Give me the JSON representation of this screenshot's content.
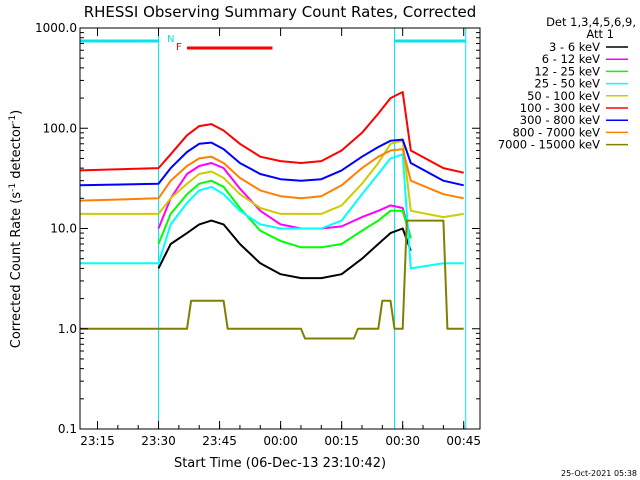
{
  "chart_data": {
    "type": "line",
    "title": "RHESSI Observing Summary Count Rates, Corrected",
    "xlabel": "Start Time (06-Dec-13 23:10:42)",
    "ylabel": "Corrected Count Rate (s",
    "ylabel_sup": "-1",
    "ylabel_tail": " detector",
    "ylabel_tail_sup": "-1",
    "ylabel_close": ")",
    "y_scale": "log",
    "ylim": [
      0.1,
      1000
    ],
    "xlim": [
      "23:10:42",
      "00:49:00"
    ],
    "x_ticks": [
      {
        "t": "23:15",
        "label": "23:15"
      },
      {
        "t": "23:30",
        "label": "23:30"
      },
      {
        "t": "23:45",
        "label": "23:45"
      },
      {
        "t": "00:00",
        "label": "00:00"
      },
      {
        "t": "00:15",
        "label": "00:15"
      },
      {
        "t": "00:30",
        "label": "00:30"
      },
      {
        "t": "00:45",
        "label": "00:45"
      }
    ],
    "y_ticks": [
      {
        "v": 0.1,
        "label": "0.1"
      },
      {
        "v": 1,
        "label": "1.0"
      },
      {
        "v": 10,
        "label": "10.0"
      },
      {
        "v": 100,
        "label": "100.0"
      },
      {
        "v": 1000,
        "label": "1000.0"
      }
    ],
    "legend_header": [
      "Det 1,3,4,5,6,9,",
      "Att 1"
    ],
    "legend_position": "right",
    "grid": false,
    "night_intervals": [
      [
        "23:10:42",
        "23:30:00"
      ],
      [
        "00:28:00",
        "00:45:30"
      ]
    ],
    "flare_interval": [
      "23:37:00",
      "23:58:00"
    ],
    "markers": [
      {
        "label": "N",
        "t": "23:33",
        "color": "#00e5ee"
      },
      {
        "label": "F",
        "t": "23:35",
        "color": "#ff0000"
      }
    ],
    "series": [
      {
        "name": "3 - 6 keV",
        "color": "#000000",
        "x": [
          "23:30",
          "23:33",
          "23:37",
          "23:40",
          "23:43",
          "23:46",
          "23:50",
          "23:55",
          "00:00",
          "00:05",
          "00:10",
          "00:15",
          "00:20",
          "00:24",
          "00:27",
          "00:30",
          "00:32"
        ],
        "values": [
          4,
          7,
          9,
          11,
          12,
          11,
          7,
          4.5,
          3.5,
          3.2,
          3.2,
          3.5,
          5,
          7,
          9,
          10,
          6
        ]
      },
      {
        "name": "6 - 12 keV",
        "color": "#ff00ff",
        "x": [
          "23:30",
          "23:33",
          "23:37",
          "23:40",
          "23:43",
          "23:46",
          "23:50",
          "23:55",
          "00:00",
          "00:05",
          "00:10",
          "00:15",
          "00:20",
          "00:24",
          "00:27",
          "00:30",
          "00:32"
        ],
        "values": [
          10,
          20,
          35,
          42,
          45,
          40,
          25,
          15,
          11,
          10,
          10,
          10.5,
          13,
          15,
          17,
          16,
          8
        ]
      },
      {
        "name": "12 - 25 keV",
        "color": "#00ff00",
        "x": [
          "23:30",
          "23:33",
          "23:37",
          "23:40",
          "23:43",
          "23:46",
          "23:50",
          "23:55",
          "00:00",
          "00:05",
          "00:10",
          "00:15",
          "00:20",
          "00:24",
          "00:27",
          "00:30",
          "00:32"
        ],
        "values": [
          7,
          14,
          22,
          28,
          30,
          26,
          16,
          9.5,
          7.5,
          6.5,
          6.5,
          7,
          9.5,
          12,
          15,
          15,
          8
        ]
      },
      {
        "name": "25 - 50 keV",
        "color": "#00ffff",
        "x": [
          "23:10:42",
          "23:30",
          "23:33",
          "23:37",
          "23:40",
          "23:43",
          "23:46",
          "23:50",
          "23:55",
          "00:00",
          "00:05",
          "00:10",
          "00:15",
          "00:20",
          "00:24",
          "00:27",
          "00:30",
          "00:32",
          "00:40",
          "00:45"
        ],
        "values": [
          4.5,
          4.5,
          11,
          18,
          24,
          26,
          22,
          15,
          11,
          10,
          10,
          10,
          12,
          22,
          35,
          50,
          55,
          4,
          4.5,
          4.5
        ]
      },
      {
        "name": "50 - 100 keV",
        "color": "#cccc00",
        "x": [
          "23:10:42",
          "23:30",
          "23:33",
          "23:37",
          "23:40",
          "23:43",
          "23:46",
          "23:50",
          "23:55",
          "00:00",
          "00:05",
          "00:10",
          "00:15",
          "00:20",
          "00:24",
          "00:27",
          "00:30",
          "00:32",
          "00:40",
          "00:45"
        ],
        "values": [
          14,
          14,
          20,
          28,
          35,
          37,
          32,
          22,
          16,
          14,
          14,
          14,
          17,
          28,
          45,
          70,
          75,
          15,
          13,
          14
        ]
      },
      {
        "name": "100 - 300 keV",
        "color": "#ff0000",
        "x": [
          "23:10:42",
          "23:30",
          "23:33",
          "23:37",
          "23:40",
          "23:43",
          "23:46",
          "23:50",
          "23:55",
          "00:00",
          "00:05",
          "00:10",
          "00:15",
          "00:20",
          "00:24",
          "00:27",
          "00:30",
          "00:32",
          "00:40",
          "00:45"
        ],
        "values": [
          38,
          40,
          55,
          85,
          105,
          110,
          95,
          70,
          52,
          47,
          45,
          47,
          60,
          90,
          140,
          200,
          230,
          60,
          40,
          36
        ]
      },
      {
        "name": "300 - 800 keV",
        "color": "#0000ff",
        "x": [
          "23:10:42",
          "23:30",
          "23:33",
          "23:37",
          "23:40",
          "23:43",
          "23:46",
          "23:50",
          "23:55",
          "00:00",
          "00:05",
          "00:10",
          "00:15",
          "00:20",
          "00:24",
          "00:27",
          "00:30",
          "00:32",
          "00:40",
          "00:45"
        ],
        "values": [
          27,
          28,
          40,
          58,
          70,
          72,
          62,
          45,
          35,
          31,
          30,
          31,
          38,
          52,
          65,
          75,
          77,
          45,
          30,
          27
        ]
      },
      {
        "name": "800 - 7000 keV",
        "color": "#ff8000",
        "x": [
          "23:10:42",
          "23:30",
          "23:33",
          "23:37",
          "23:40",
          "23:43",
          "23:46",
          "23:50",
          "23:55",
          "00:00",
          "00:05",
          "00:10",
          "00:15",
          "00:20",
          "00:24",
          "00:27",
          "00:30",
          "00:32",
          "00:40",
          "00:45"
        ],
        "values": [
          19,
          20,
          30,
          42,
          50,
          52,
          45,
          32,
          24,
          21,
          20,
          21,
          27,
          40,
          52,
          60,
          62,
          30,
          22,
          20
        ]
      },
      {
        "name": "7000 - 15000 keV",
        "color": "#808000",
        "x": [
          "23:10:42",
          "23:30",
          "23:31",
          "23:37",
          "23:38",
          "23:46",
          "23:47",
          "00:05",
          "00:06",
          "00:18",
          "00:19",
          "00:24",
          "00:25",
          "00:27",
          "00:28",
          "00:30",
          "00:31",
          "00:40",
          "00:41",
          "00:45"
        ],
        "values": [
          1,
          1,
          1,
          1,
          1.9,
          1.9,
          1,
          1,
          0.8,
          0.8,
          1,
          1,
          1.9,
          1.9,
          1,
          1,
          12,
          12,
          1,
          1
        ]
      }
    ]
  },
  "footer_timestamp": "25-Oct-2021 05:38"
}
